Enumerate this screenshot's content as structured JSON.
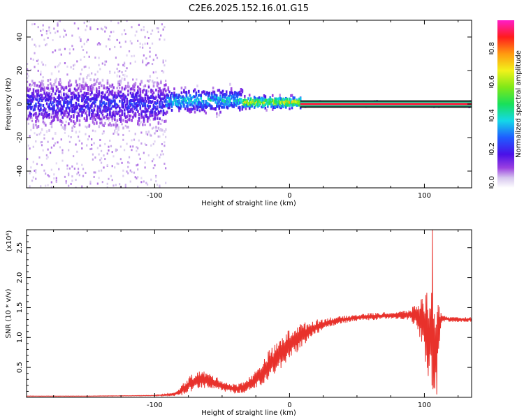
{
  "title": "C2E6.2025.152.16.01.G15",
  "chart_data": [
    {
      "type": "heatmap",
      "xlabel": "Height of straight line (km)",
      "ylabel": "Frequency (Hz)",
      "xlim": [
        -195,
        135
      ],
      "ylim": [
        -50,
        50
      ],
      "x_ticks": [
        -100,
        0,
        100
      ],
      "y_ticks": [
        -40,
        -20,
        0,
        20,
        40
      ],
      "grid": false,
      "colorbar": {
        "label": "Normalized spectral amplitude",
        "range": [
          0,
          1
        ],
        "ticks": [
          "0.0",
          "0.2",
          "0.4",
          "0.6",
          "0.8"
        ]
      },
      "regions": [
        {
          "x_range": [
            -195,
            -92
          ],
          "description_values": {
            "band_center_hz": 0,
            "band_halfwidth_hz": 12,
            "noise_extent_hz": 50,
            "peak_amplitude": 0.3
          }
        },
        {
          "x_range": [
            -92,
            -35
          ],
          "description_values": {
            "band_center_hz": 2,
            "band_halfwidth_hz": 6,
            "peak_amplitude": 0.5
          }
        },
        {
          "x_range": [
            -35,
            8
          ],
          "description_values": {
            "band_center_hz": 1,
            "band_halfwidth_hz": 3,
            "peak_amplitude": 0.8
          }
        },
        {
          "x_range": [
            8,
            135
          ],
          "description_values": {
            "band_center_hz": 0,
            "band_halfwidth_hz": 1,
            "peak_amplitude": 1.0
          }
        }
      ]
    },
    {
      "type": "line",
      "xlabel": "Height of straight line (km)",
      "ylabel": "SNR (10 * v/v)",
      "y_multiplier": "(x10⁴)",
      "xlim": [
        -195,
        135
      ],
      "ylim": [
        0,
        2.8
      ],
      "x_ticks": [
        -100,
        0,
        100
      ],
      "y_ticks": [
        "0.5",
        "1.0",
        "1.5",
        "2.0",
        "2.5"
      ],
      "series_color": "#e8312b",
      "series": [
        {
          "x": [
            -195,
            -150,
            -100,
            -85,
            -80,
            -75,
            -70,
            -65,
            -60,
            -55,
            -50,
            -45,
            -40,
            -35,
            -30,
            -25,
            -20,
            -15,
            -10,
            -5,
            0,
            5,
            10,
            15,
            20,
            25,
            30,
            40,
            50,
            60,
            70,
            80,
            90,
            95,
            98,
            100,
            102,
            104,
            106,
            108,
            110,
            112,
            115,
            120,
            125,
            130,
            135
          ],
          "y": [
            0.02,
            0.02,
            0.03,
            0.05,
            0.12,
            0.2,
            0.28,
            0.3,
            0.28,
            0.24,
            0.2,
            0.16,
            0.14,
            0.17,
            0.22,
            0.3,
            0.42,
            0.55,
            0.65,
            0.78,
            0.88,
            0.98,
            1.05,
            1.12,
            1.18,
            1.22,
            1.26,
            1.3,
            1.33,
            1.35,
            1.36,
            1.37,
            1.38,
            1.35,
            1.3,
            1.2,
            1.1,
            1.0,
            0.95,
            0.9,
            1.1,
            1.3,
            1.32,
            1.3,
            1.3,
            1.3,
            1.3
          ],
          "amp": [
            0.003,
            0.003,
            0.006,
            0.03,
            0.09,
            0.13,
            0.15,
            0.15,
            0.13,
            0.11,
            0.09,
            0.08,
            0.08,
            0.1,
            0.12,
            0.15,
            0.2,
            0.25,
            0.25,
            0.26,
            0.26,
            0.24,
            0.2,
            0.15,
            0.12,
            0.1,
            0.08,
            0.06,
            0.06,
            0.06,
            0.06,
            0.06,
            0.1,
            0.25,
            0.4,
            0.55,
            0.7,
            0.85,
            1.0,
            0.8,
            0.5,
            0.15,
            0.05,
            0.04,
            0.04,
            0.04,
            0.04
          ],
          "maximum": 2.8,
          "minimum_dip": 0.05
        }
      ]
    }
  ]
}
